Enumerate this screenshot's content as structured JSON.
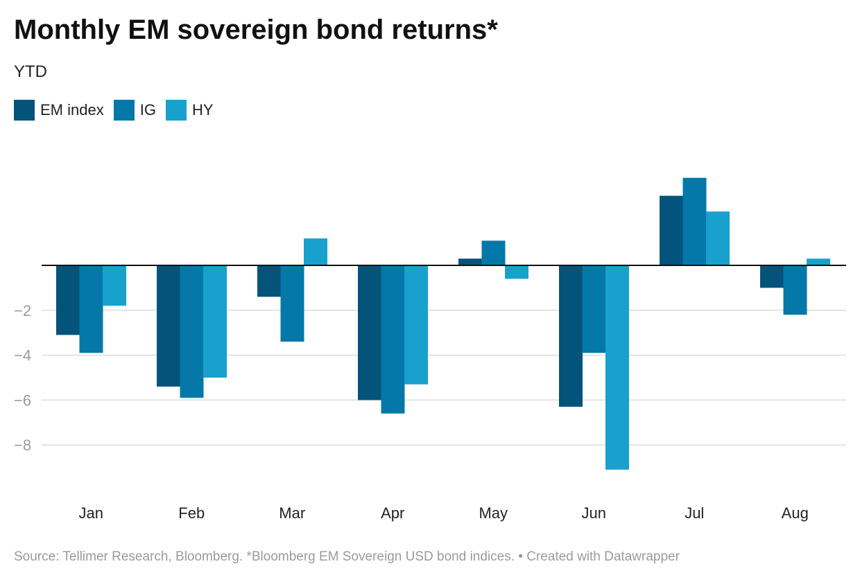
{
  "title": "Monthly EM sovereign bond returns*",
  "subtitle": "YTD",
  "footer": "Source: Tellimer Research, Bloomberg. *Bloomberg EM Sovereign USD bond indices. • Created with Datawrapper",
  "colors": {
    "EM index": "#03537b",
    "IG": "#0478a8",
    "HY": "#18a1cd",
    "grid": "#dddddd",
    "zero_line": "#111111",
    "tick": "#9a9a9a"
  },
  "chart_data": {
    "type": "bar",
    "categories": [
      "Jan",
      "Feb",
      "Mar",
      "Apr",
      "May",
      "Jun",
      "Jul",
      "Aug"
    ],
    "series": [
      {
        "name": "EM index",
        "values": [
          -3.1,
          -5.4,
          -1.4,
          -6.0,
          0.3,
          -6.3,
          3.1,
          -1.0
        ]
      },
      {
        "name": "IG",
        "values": [
          -3.9,
          -5.9,
          -3.4,
          -6.6,
          1.1,
          -3.9,
          3.9,
          -2.2
        ]
      },
      {
        "name": "HY",
        "values": [
          -1.8,
          -5.0,
          1.2,
          -5.3,
          -0.6,
          -9.1,
          2.4,
          0.3
        ]
      }
    ],
    "yticks": [
      -2,
      -4,
      -6,
      -8
    ],
    "ytick_labels": [
      "−2",
      "−4",
      "−6",
      "−8"
    ],
    "ylim": [
      -10,
      6
    ],
    "grid": true,
    "legend": "top-left"
  }
}
